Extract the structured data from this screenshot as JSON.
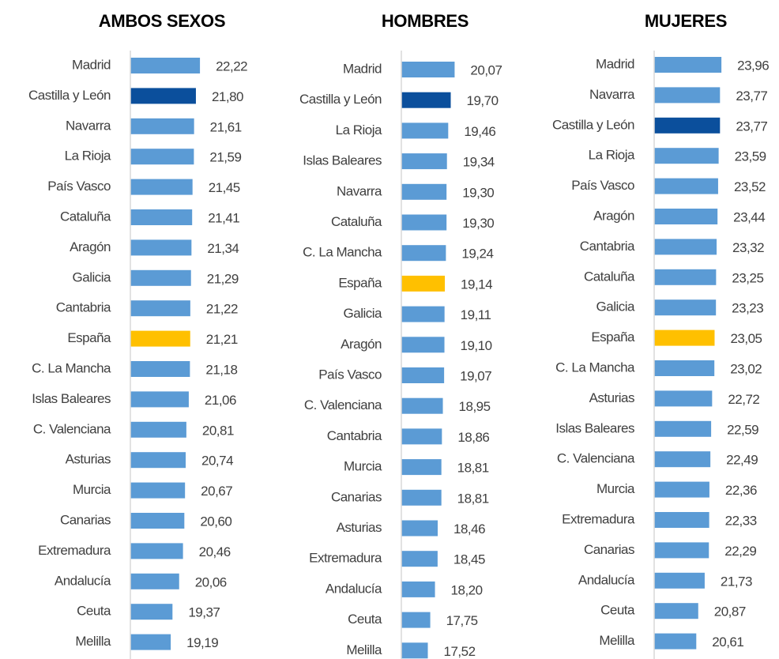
{
  "chart_data": [
    {
      "type": "bar",
      "orientation": "horizontal",
      "title": "AMBOS SEXOS",
      "categories": [
        "Madrid",
        "Castilla y León",
        "Navarra",
        "La Rioja",
        "País Vasco",
        "Cataluña",
        "Aragón",
        "Galicia",
        "Cantabria",
        "España",
        "C. La Mancha",
        "Islas Baleares",
        "C. Valenciana",
        "Asturias",
        "Murcia",
        "Canarias",
        "Extremadura",
        "Andalucía",
        "Ceuta",
        "Melilla"
      ],
      "values": [
        22.22,
        21.8,
        21.61,
        21.59,
        21.45,
        21.41,
        21.34,
        21.29,
        21.22,
        21.21,
        21.18,
        21.06,
        20.81,
        20.74,
        20.67,
        20.6,
        20.46,
        20.06,
        19.37,
        19.19
      ],
      "value_labels": [
        "22,22",
        "21,80",
        "21,61",
        "21,59",
        "21,45",
        "21,41",
        "21,34",
        "21,29",
        "21,22",
        "21,21",
        "21,18",
        "21,06",
        "20,81",
        "20,74",
        "20,67",
        "20,60",
        "20,46",
        "20,06",
        "19,37",
        "19,19"
      ],
      "colors": [
        "#5b9bd5",
        "#0b4f9c",
        "#5b9bd5",
        "#5b9bd5",
        "#5b9bd5",
        "#5b9bd5",
        "#5b9bd5",
        "#5b9bd5",
        "#5b9bd5",
        "#ffc000",
        "#5b9bd5",
        "#5b9bd5",
        "#5b9bd5",
        "#5b9bd5",
        "#5b9bd5",
        "#5b9bd5",
        "#5b9bd5",
        "#5b9bd5",
        "#5b9bd5",
        "#5b9bd5"
      ],
      "xlim": [
        15,
        25
      ]
    },
    {
      "type": "bar",
      "orientation": "horizontal",
      "title": "HOMBRES",
      "categories": [
        "Madrid",
        "Castilla y León",
        "La Rioja",
        "Islas Baleares",
        "Navarra",
        "Cataluña",
        "C. La Mancha",
        "España",
        "Galicia",
        "Aragón",
        "País Vasco",
        "C. Valenciana",
        "Cantabria",
        "Murcia",
        "Canarias",
        "Asturias",
        "Extremadura",
        "Andalucía",
        "Ceuta",
        "Melilla"
      ],
      "values": [
        20.07,
        19.7,
        19.46,
        19.34,
        19.3,
        19.3,
        19.24,
        19.14,
        19.11,
        19.1,
        19.07,
        18.95,
        18.86,
        18.81,
        18.81,
        18.46,
        18.45,
        18.2,
        17.75,
        17.52
      ],
      "value_labels": [
        "20,07",
        "19,70",
        "19,46",
        "19,34",
        "19,30",
        "19,30",
        "19,24",
        "19,14",
        "19,11",
        "19,10",
        "19,07",
        "18,95",
        "18,86",
        "18,81",
        "18,81",
        "18,46",
        "18,45",
        "18,20",
        "17,75",
        "17,52"
      ],
      "colors": [
        "#5b9bd5",
        "#0b4f9c",
        "#5b9bd5",
        "#5b9bd5",
        "#5b9bd5",
        "#5b9bd5",
        "#5b9bd5",
        "#ffc000",
        "#5b9bd5",
        "#5b9bd5",
        "#5b9bd5",
        "#5b9bd5",
        "#5b9bd5",
        "#5b9bd5",
        "#5b9bd5",
        "#5b9bd5",
        "#5b9bd5",
        "#5b9bd5",
        "#5b9bd5",
        "#5b9bd5"
      ],
      "xlim": [
        15,
        25
      ]
    },
    {
      "type": "bar",
      "orientation": "horizontal",
      "title": "MUJERES",
      "categories": [
        "Madrid",
        "Navarra",
        "Castilla y León",
        "La Rioja",
        "País Vasco",
        "Aragón",
        "Cantabria",
        "Cataluña",
        "Galicia",
        "España",
        "C. La Mancha",
        "Asturias",
        "Islas Baleares",
        "C. Valenciana",
        "Murcia",
        "Extremadura",
        "Canarias",
        "Andalucía",
        "Ceuta",
        "Melilla"
      ],
      "values": [
        23.96,
        23.77,
        23.77,
        23.59,
        23.52,
        23.44,
        23.32,
        23.25,
        23.23,
        23.05,
        23.02,
        22.72,
        22.59,
        22.49,
        22.36,
        22.33,
        22.29,
        21.73,
        20.87,
        20.61
      ],
      "value_labels": [
        "23,96",
        "23,77",
        "23,77",
        "23,59",
        "23,52",
        "23,44",
        "23,32",
        "23,25",
        "23,23",
        "23,05",
        "23,02",
        "22,72",
        "22,59",
        "22,49",
        "22,36",
        "22,33",
        "22,29",
        "21,73",
        "20,87",
        "20,61"
      ],
      "colors": [
        "#5b9bd5",
        "#5b9bd5",
        "#0b4f9c",
        "#5b9bd5",
        "#5b9bd5",
        "#5b9bd5",
        "#5b9bd5",
        "#5b9bd5",
        "#5b9bd5",
        "#ffc000",
        "#5b9bd5",
        "#5b9bd5",
        "#5b9bd5",
        "#5b9bd5",
        "#5b9bd5",
        "#5b9bd5",
        "#5b9bd5",
        "#5b9bd5",
        "#5b9bd5",
        "#5b9bd5"
      ],
      "xlim": [
        15,
        25
      ]
    }
  ]
}
